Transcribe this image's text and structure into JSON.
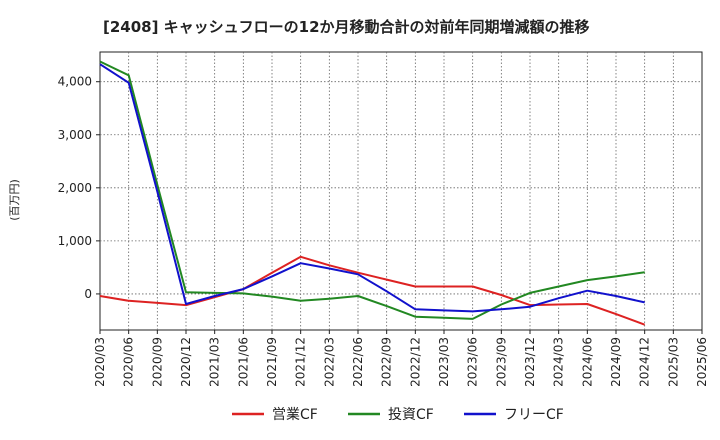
{
  "chart_data": {
    "type": "line",
    "title": "[2408]  キャッシュフローの12か月移動合計の対前年同期増減額の推移",
    "ylabel": "(百万円)",
    "xlabel": "",
    "ylim": [
      -680,
      4560
    ],
    "yticks": [
      0,
      1000,
      2000,
      3000,
      4000
    ],
    "ytick_labels": [
      "0",
      "1,000",
      "2,000",
      "3,000",
      "4,000"
    ],
    "categories": [
      "2020/03",
      "2020/06",
      "2020/09",
      "2020/12",
      "2021/03",
      "2021/06",
      "2021/09",
      "2021/12",
      "2022/03",
      "2022/06",
      "2022/09",
      "2022/12",
      "2023/03",
      "2023/06",
      "2023/09",
      "2023/12",
      "2024/03",
      "2024/06",
      "2024/09",
      "2024/12",
      "2025/03",
      "2025/06"
    ],
    "grid": true,
    "legend_position": "bottom-center",
    "series": [
      {
        "name": "営業CF",
        "color": "#dd2222",
        "values": [
          -40,
          -130,
          -170,
          -210,
          -60,
          90,
          400,
          700,
          540,
          400,
          270,
          140,
          140,
          140,
          -20,
          -210,
          -200,
          -190,
          -380,
          -580,
          null,
          null
        ]
      },
      {
        "name": "投資CF",
        "color": "#228822",
        "values": [
          4380,
          4120,
          2060,
          30,
          20,
          10,
          -50,
          -130,
          -90,
          -40,
          -230,
          -430,
          -450,
          -470,
          -200,
          20,
          140,
          260,
          330,
          410,
          null,
          null
        ]
      },
      {
        "name": "フリーCF",
        "color": "#1111cc",
        "values": [
          4330,
          3980,
          1930,
          -190,
          -40,
          90,
          330,
          580,
          480,
          370,
          50,
          -290,
          -310,
          -330,
          -290,
          -240,
          -80,
          60,
          -40,
          -160,
          null,
          null
        ]
      }
    ]
  }
}
